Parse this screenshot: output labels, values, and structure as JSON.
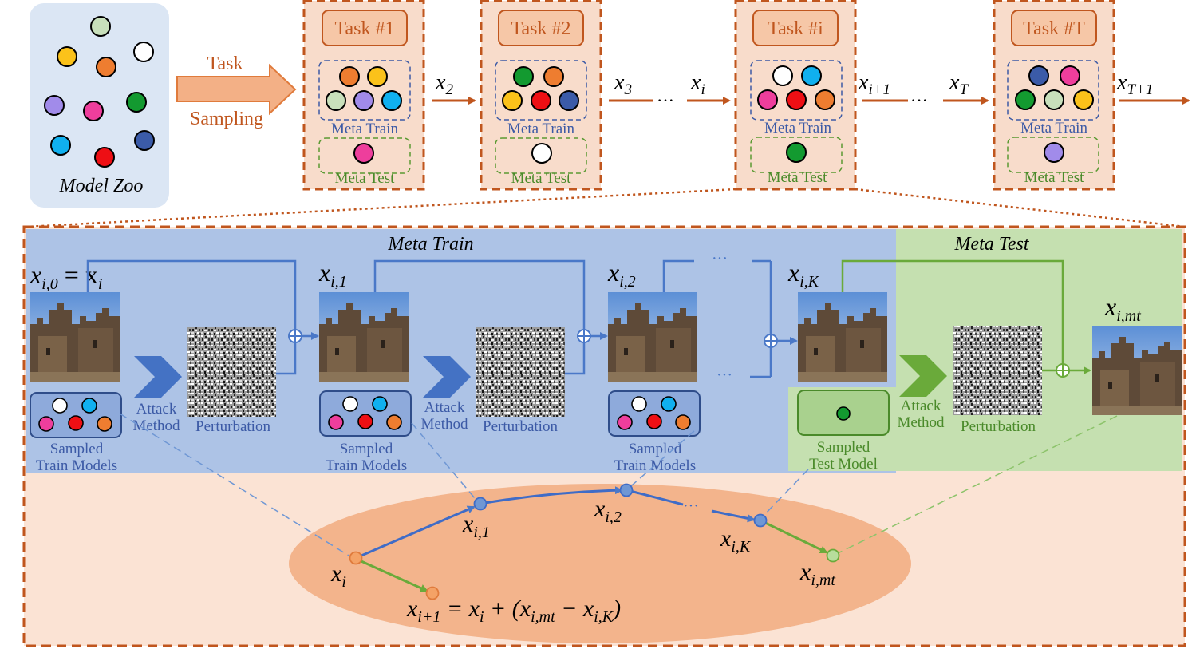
{
  "model_zoo": {
    "label": "Model Zoo"
  },
  "sampling": {
    "line1": "Task",
    "line2": "Sampling"
  },
  "tasks": [
    {
      "title": "Task #1",
      "train": "Meta Train",
      "test": "Meta Test"
    },
    {
      "title": "Task #2",
      "train": "Meta Train",
      "test": "Meta Test"
    },
    {
      "title": "Task #i",
      "train": "Meta Train",
      "test": "Meta Test"
    },
    {
      "title": "Task #T",
      "train": "Meta Train",
      "test": "Meta Test"
    }
  ],
  "arrows": {
    "x2": "x",
    "x2_sub": "2",
    "x3": "x",
    "x3_sub": "3",
    "xi": "x",
    "xi_sub": "i",
    "xi1": "x",
    "xi1_sub": "i+1",
    "xT": "x",
    "xT_sub": "T",
    "xT1": "x",
    "xT1_sub": "T+1",
    "dots": "···"
  },
  "detail": {
    "meta_train_title": "Meta Train",
    "meta_test_title": "Meta Test",
    "x0": "x",
    "x0_sub": "i,0",
    "x0_eq": " = x",
    "x0_eq_sub": "i",
    "x1": "x",
    "x1_sub": "i,1",
    "x2": "x",
    "x2_sub": "i,2",
    "xK": "x",
    "xK_sub": "i,K",
    "xmt": "x",
    "xmt_sub": "i,mt",
    "dots": "···",
    "attack1": "Attack",
    "attack2": "Method",
    "perturbation": "Perturbation",
    "sampled1": "Sampled",
    "sampled2": "Train Models",
    "sampled_test2": "Test Model"
  },
  "trajectory": {
    "xi": "x",
    "xi_sub": "i",
    "x1": "x",
    "x1_sub": "i,1",
    "x2": "x",
    "x2_sub": "i,2",
    "xK": "x",
    "xK_sub": "i,K",
    "xmt": "x",
    "xmt_sub": "i,mt",
    "dots": "···",
    "update_lhs": "x",
    "update_lhs_sub": "i+1",
    "update_eq": " = x",
    "update_eq_sub": "i",
    "update_plus": " + (x",
    "update_mt_sub": "i,mt",
    "update_minus": " − x",
    "update_k_sub": "i,K",
    "update_close": ")"
  },
  "colors": {
    "orange": "#c0561e",
    "task_fill": "#f8dccb",
    "blue_panel": "#adc3e6",
    "green_panel": "#c5e0b0",
    "model_blue": "#3c5aa6",
    "model_green": "#5a9a32",
    "line_blue": "#4a78c8",
    "line_green": "#6aaa3a"
  }
}
